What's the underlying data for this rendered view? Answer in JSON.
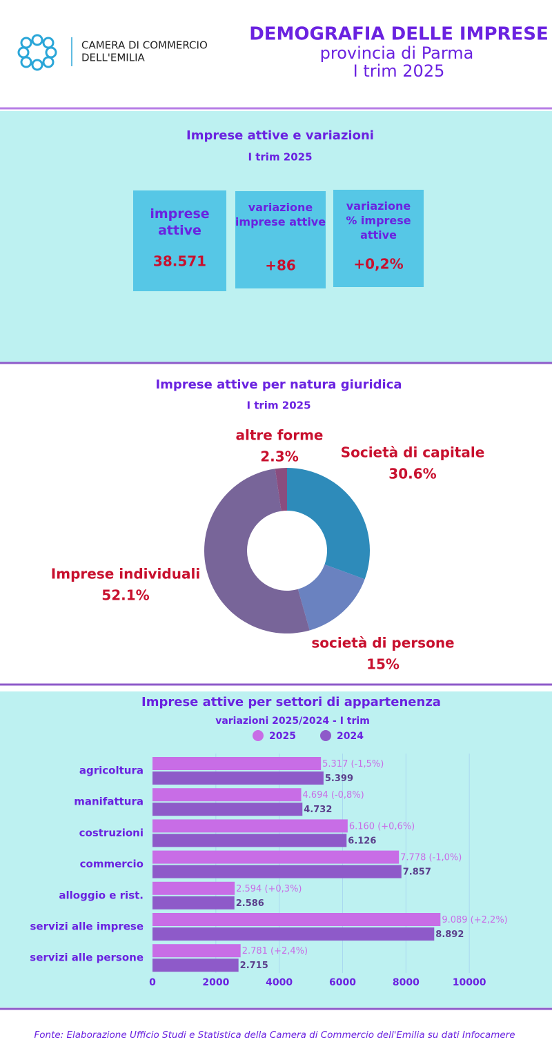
{
  "header": {
    "logo_line1": "CAMERA DI COMMERCIO",
    "logo_line2": "DELL'EMILIA",
    "title": "DEMOGRAFIA DELLE IMPRESE",
    "subtitle1": "provincia di Parma",
    "subtitle2": "I trim 2025"
  },
  "kpi_section": {
    "title": "Imprese attive e variazioni",
    "subtitle": "I trim 2025",
    "cards": [
      {
        "label": "imprese attive",
        "value": "38.571"
      },
      {
        "label": "variazione imprese attive",
        "value": "+86"
      },
      {
        "label": "variazione % imprese attive",
        "value": "+0,2%"
      }
    ]
  },
  "chart_data": [
    {
      "type": "donut",
      "title": "Imprese attive per natura giuridica",
      "subtitle": "I trim 2025",
      "categories": [
        "Società di capitale",
        "società di persone",
        "Imprese individuali",
        "altre forme"
      ],
      "values": [
        30.6,
        15,
        52.1,
        2.3
      ],
      "value_labels": [
        "30.6%",
        "15%",
        "52.1%",
        "2.3%"
      ],
      "colors": [
        "#2e8bba",
        "#6a82c0",
        "#786599",
        "#8a4d7f"
      ]
    },
    {
      "type": "hbar",
      "title": "Imprese attive per settori di appartenenza",
      "subtitle": "variazioni 2025/2024 - I trim",
      "categories": [
        "agricoltura",
        "manifattura",
        "costruzioni",
        "commercio",
        "alloggio e rist.",
        "servizi alle imprese",
        "servizi alle persone"
      ],
      "series": [
        {
          "name": "2025",
          "color": "#c86de6",
          "values": [
            5317,
            4694,
            6160,
            7778,
            2594,
            9089,
            2781
          ],
          "value_labels": [
            "5.317 (-1,5%)",
            "4.694 (-0,8%)",
            "6.160 (+0,6%)",
            "7.778 (-1,0%)",
            "2.594 (+0,3%)",
            "9.089 (+2,2%)",
            "2.781 (+2,4%)"
          ]
        },
        {
          "name": "2024",
          "color": "#8e5ac9",
          "values": [
            5399,
            4732,
            6126,
            7857,
            2586,
            8892,
            2715
          ],
          "value_labels": [
            "5.399",
            "4.732",
            "6.126",
            "7.857",
            "2.586",
            "8.892",
            "2.715"
          ]
        }
      ],
      "xlim": [
        0,
        12000
      ],
      "xticks": [
        0,
        2000,
        4000,
        6000,
        8000,
        10000
      ],
      "grid": true
    }
  ],
  "footer": {
    "source": "Fonte: Elaborazione Ufficio Studi e Statistica della Camera di Commercio dell'Emilia su dati Infocamere"
  }
}
